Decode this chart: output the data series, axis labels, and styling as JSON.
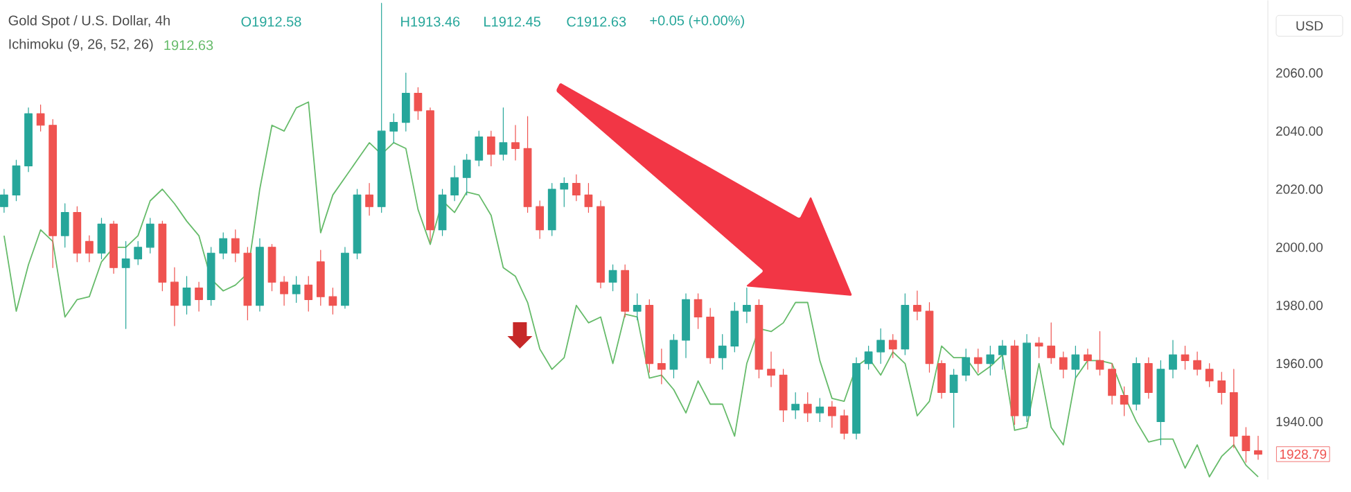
{
  "chart_data": {
    "type": "candlestick",
    "title": "Gold Spot / U.S. Dollar, 4h",
    "ylabel": "USD",
    "categories": [
      null,
      null,
      null,
      null,
      null,
      null,
      null,
      null,
      null,
      null,
      null,
      null,
      null,
      null,
      null,
      null,
      null,
      null,
      null,
      null,
      null,
      null,
      null,
      null,
      null,
      null,
      null,
      null,
      null,
      null,
      null,
      null,
      null,
      null,
      null,
      null,
      null,
      null,
      null,
      null,
      null,
      null,
      null,
      null,
      null,
      null,
      null,
      null,
      null,
      null,
      null,
      null,
      null,
      null,
      null,
      null,
      null,
      null,
      null,
      null,
      null,
      null,
      null,
      null,
      null,
      null,
      null,
      null,
      null,
      null,
      null,
      null,
      null,
      null,
      null,
      null,
      null,
      null,
      null,
      null,
      null,
      null,
      null,
      null,
      null,
      null,
      null,
      null,
      null,
      null,
      null,
      null,
      null,
      null,
      null,
      null,
      null,
      null,
      null,
      null,
      null,
      null,
      null,
      null
    ],
    "ohlc": [
      [
        2014,
        2020,
        2012,
        2018
      ],
      [
        2018,
        2030,
        2016,
        2028
      ],
      [
        2028,
        2048,
        2026,
        2046
      ],
      [
        2046,
        2049,
        2040,
        2042
      ],
      [
        2042,
        2044,
        1993,
        2004
      ],
      [
        2004,
        2015,
        2000,
        2012
      ],
      [
        2012,
        2014,
        1995,
        1998
      ],
      [
        2002,
        2004,
        1995,
        1998
      ],
      [
        1998,
        2010,
        1996,
        2008
      ],
      [
        2008,
        2009,
        1991,
        1993
      ],
      [
        1993,
        2002,
        1972,
        1996
      ],
      [
        1996,
        2002,
        1994,
        2000
      ],
      [
        2000,
        2010,
        1998,
        2008
      ],
      [
        2008,
        2009,
        1985,
        1988
      ],
      [
        1988,
        1993,
        1973,
        1980
      ],
      [
        1980,
        1990,
        1977,
        1986
      ],
      [
        1986,
        1988,
        1978,
        1982
      ],
      [
        1982,
        2000,
        1980,
        1998
      ],
      [
        1998,
        2005,
        1996,
        2003
      ],
      [
        2003,
        2006,
        1995,
        1998
      ],
      [
        1998,
        2000,
        1975,
        1980
      ],
      [
        1980,
        2003,
        1978,
        2000
      ],
      [
        2000,
        2001,
        1985,
        1988
      ],
      [
        1988,
        1990,
        1980,
        1984
      ],
      [
        1984,
        1990,
        1981,
        1987
      ],
      [
        1987,
        1990,
        1978,
        1982
      ],
      [
        1995,
        1999,
        1980,
        1983
      ],
      [
        1983,
        1986,
        1977,
        1980
      ],
      [
        1980,
        2000,
        1979,
        1998
      ],
      [
        1998,
        2020,
        1996,
        2018
      ],
      [
        2018,
        2022,
        2011,
        2014
      ],
      [
        2014,
        2084,
        2012,
        2040
      ],
      [
        2040,
        2046,
        2036,
        2043
      ],
      [
        2043,
        2060,
        2040,
        2053
      ],
      [
        2053,
        2055,
        2044,
        2047
      ],
      [
        2047,
        2048,
        2002,
        2006
      ],
      [
        2006,
        2020,
        2004,
        2018
      ],
      [
        2018,
        2028,
        2016,
        2024
      ],
      [
        2024,
        2032,
        2018,
        2030
      ],
      [
        2030,
        2040,
        2028,
        2038
      ],
      [
        2038,
        2040,
        2028,
        2032
      ],
      [
        2032,
        2048,
        2030,
        2036
      ],
      [
        2036,
        2042,
        2030,
        2034
      ],
      [
        2034,
        2045,
        2012,
        2014
      ],
      [
        2014,
        2016,
        2003,
        2006
      ],
      [
        2006,
        2022,
        2004,
        2020
      ],
      [
        2020,
        2024,
        2014,
        2022
      ],
      [
        2022,
        2025,
        2016,
        2018
      ],
      [
        2018,
        2022,
        2012,
        2014
      ],
      [
        2014,
        2016,
        1986,
        1988
      ],
      [
        1988,
        1994,
        1985,
        1992
      ],
      [
        1992,
        1994,
        1976,
        1978
      ],
      [
        1978,
        1984,
        1975,
        1980
      ],
      [
        1980,
        1982,
        1957,
        1960
      ],
      [
        1960,
        1965,
        1953,
        1958
      ],
      [
        1958,
        1970,
        1955,
        1968
      ],
      [
        1968,
        1984,
        1962,
        1982
      ],
      [
        1982,
        1984,
        1972,
        1976
      ],
      [
        1976,
        1979,
        1960,
        1962
      ],
      [
        1962,
        1970,
        1958,
        1966
      ],
      [
        1966,
        1981,
        1964,
        1978
      ],
      [
        1978,
        1986,
        1974,
        1980
      ],
      [
        1980,
        1982,
        1955,
        1958
      ],
      [
        1958,
        1964,
        1952,
        1956
      ],
      [
        1956,
        1958,
        1940,
        1944
      ],
      [
        1944,
        1950,
        1941,
        1946
      ],
      [
        1946,
        1950,
        1940,
        1943
      ],
      [
        1943,
        1948,
        1940,
        1945
      ],
      [
        1945,
        1947,
        1938,
        1942
      ],
      [
        1942,
        1944,
        1934,
        1936
      ],
      [
        1936,
        1962,
        1934,
        1960
      ],
      [
        1960,
        1966,
        1958,
        1964
      ],
      [
        1964,
        1972,
        1960,
        1968
      ],
      [
        1968,
        1970,
        1962,
        1965
      ],
      [
        1965,
        1984,
        1963,
        1980
      ],
      [
        1980,
        1985,
        1975,
        1978
      ],
      [
        1978,
        1981,
        1957,
        1960
      ],
      [
        1960,
        1961,
        1948,
        1950
      ],
      [
        1950,
        1958,
        1938,
        1956
      ],
      [
        1956,
        1965,
        1954,
        1962
      ],
      [
        1962,
        1965,
        1957,
        1960
      ],
      [
        1960,
        1966,
        1956,
        1963
      ],
      [
        1963,
        1968,
        1958,
        1966
      ],
      [
        1966,
        1968,
        1939,
        1942
      ],
      [
        1942,
        1970,
        1940,
        1967
      ],
      [
        1967,
        1969,
        1962,
        1966
      ],
      [
        1966,
        1974,
        1960,
        1962
      ],
      [
        1962,
        1964,
        1955,
        1958
      ],
      [
        1958,
        1966,
        1955,
        1963
      ],
      [
        1963,
        1965,
        1958,
        1961
      ],
      [
        1961,
        1971,
        1956,
        1958
      ],
      [
        1958,
        1960,
        1946,
        1949
      ],
      [
        1949,
        1952,
        1942,
        1946
      ],
      [
        1946,
        1962,
        1944,
        1960
      ],
      [
        1960,
        1962,
        1948,
        1950
      ],
      [
        1940,
        1961,
        1932,
        1958
      ],
      [
        1958,
        1968,
        1955,
        1963
      ],
      [
        1963,
        1966,
        1958,
        1961
      ],
      [
        1961,
        1964,
        1956,
        1958
      ],
      [
        1958,
        1960,
        1952,
        1954
      ],
      [
        1954,
        1957,
        1946,
        1950
      ],
      [
        1950,
        1958,
        1931,
        1935
      ],
      [
        1935,
        1938,
        1926,
        1930
      ],
      [
        1930,
        1935,
        1927,
        1928.79
      ]
    ],
    "series": [
      {
        "name": "Ichimoku (9, 26, 52, 26)",
        "type": "line",
        "color": "#66bb6a",
        "values": [
          2004,
          1978,
          1994,
          2006,
          2002,
          1976,
          1982,
          1983,
          1995,
          2000,
          2000,
          2004,
          2016,
          2020,
          2015,
          2009,
          2004,
          1989,
          1985,
          1987,
          1991,
          2020,
          2042,
          2040,
          2048,
          2050,
          2005,
          2018,
          2024,
          2030,
          2036,
          2032,
          2036,
          2034,
          2013,
          2001,
          2016,
          2012,
          2019,
          2018,
          2011,
          1993,
          1990,
          1981,
          1965,
          1958,
          1962,
          1980,
          1974,
          1976,
          1960,
          1977,
          1976,
          1955,
          1956,
          1951,
          1943,
          1954,
          1946,
          1946,
          1935,
          1960,
          1972,
          1971,
          1974,
          1981,
          1981,
          1961,
          1948,
          1947,
          1959,
          1962,
          1956,
          1964,
          1960,
          1942,
          1947,
          1966,
          1962,
          1962,
          1956,
          1959,
          1963,
          1937,
          1938,
          1960,
          1938,
          1932,
          1955,
          1961,
          1961,
          1960,
          1949,
          1940,
          1933,
          1934,
          1934,
          1924,
          1932,
          1921,
          1928,
          1932,
          1925,
          1921
        ]
      }
    ],
    "ylim": [
      1920,
      2085
    ],
    "yticks": [
      {
        "value": 1940,
        "label": "1940.00"
      },
      {
        "value": 1960,
        "label": "1960.00"
      },
      {
        "value": 1980,
        "label": "1980.00"
      },
      {
        "value": 2000,
        "label": "2000.00"
      },
      {
        "value": 2020,
        "label": "2020.00"
      },
      {
        "value": 2040,
        "label": "2040.00"
      },
      {
        "value": 2060,
        "label": "2060.00"
      }
    ],
    "tick_labels": "y",
    "legend": "top left",
    "annotations": [
      "O1912.58",
      "H1913.46",
      "L1912.45",
      "C1912.63",
      "+0.05 (+0.00%)",
      "1912.63",
      "1928.79"
    ]
  }
}
